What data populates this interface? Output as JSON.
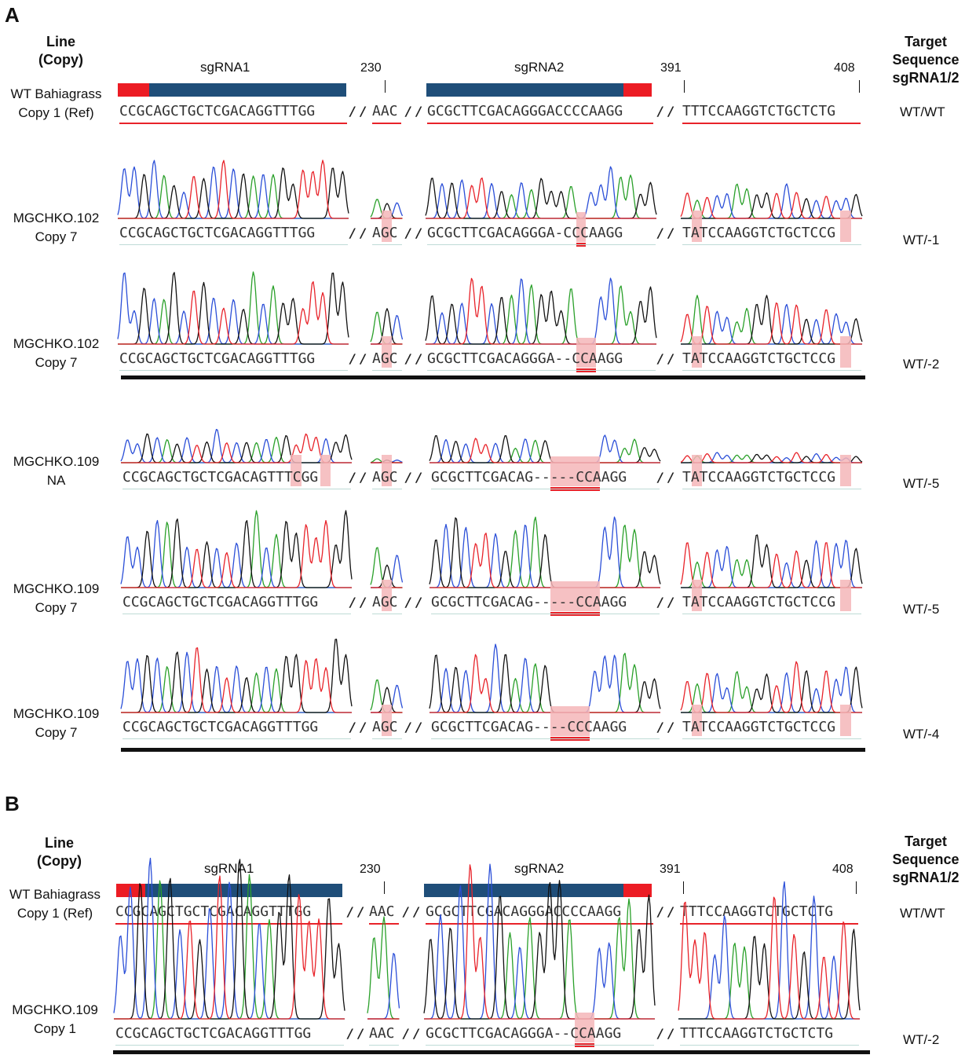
{
  "panels": [
    {
      "letter": "A",
      "left_header": "Line\n(Copy)",
      "right_header": "Target\nSequence\nsgRNA1/2",
      "sgrna1_label": "sgRNA1",
      "sgrna2_label": "sgRNA2",
      "positions": [
        "230",
        "391",
        "408"
      ],
      "reference": {
        "line": "WT Bahiagrass",
        "copy": "Copy 1 (Ref)",
        "seq1": "CCGCAGCTGCTCGACAGGTTTGG",
        "seq2": "AAC",
        "seq3": "GCGCTTCGACAGGGACCCCAAGG",
        "seq4": "TTTCCAAGGTCTGCTCTG",
        "result": "WT/WT"
      },
      "samples": [
        {
          "line": "MGCHKO.102",
          "copy": "Copy 7",
          "seq1": "CCGCAGCTGCTCGACAGGTTTGG",
          "seq2": "AGC",
          "seq3": "GCGCTTCGACAGGGA-CCCAAGG",
          "seq4": "TATCCAAGGTCTGCTCCG",
          "result": "WT/-1"
        },
        {
          "line": "MGCHKO.102",
          "copy": "Copy 7",
          "seq1": "CCGCAGCTGCTCGACAGGTTTGG",
          "seq2": "AGC",
          "seq3": "GCGCTTCGACAGGGA--CCAAGG",
          "seq4": "TATCCAAGGTCTGCTCCG",
          "result": "WT/-2"
        },
        {
          "line": "MGCHKO.109",
          "copy": "NA",
          "seq1": "CCGCAGCTGCTCGACAGTTTCGG",
          "seq2": "AGC",
          "seq3": "GCGCTTCGACAG-----CCAAGG",
          "seq4": "TATCCAAGGTCTGCTCCG",
          "result": "WT/-5"
        },
        {
          "line": "MGCHKO.109",
          "copy": "Copy 7",
          "seq1": "CCGCAGCTGCTCGACAGGTTTGG",
          "seq2": "AGC",
          "seq3": "GCGCTTCGACAG-----CCAAGG",
          "seq4": "TATCCAAGGTCTGCTCCG",
          "result": "WT/-5"
        },
        {
          "line": "MGCHKO.109",
          "copy": "Copy 7",
          "seq1": "CCGCAGCTGCTCGACAGGTTTGG",
          "seq2": "AGC",
          "seq3": "GCGCTTCGACAG----CCCAAGG",
          "seq4": "TATCCAAGGTCTGCTCCG",
          "result": "WT/-4"
        }
      ]
    },
    {
      "letter": "B",
      "left_header": "Line\n(Copy)",
      "right_header": "Target\nSequence\nsgRNA1/2",
      "sgrna1_label": "sgRNA1",
      "sgrna2_label": "sgRNA2",
      "positions": [
        "230",
        "391",
        "408"
      ],
      "reference": {
        "line": "WT Bahiagrass",
        "copy": "Copy 1 (Ref)",
        "seq1": "CCGCAGCTGCTCGACAGGTTTGG",
        "seq2": "AAC",
        "seq3": "GCGCTTCGACAGGGACCCCAAGG",
        "seq4": "TTTCCAAGGTCTGCTCTG",
        "result": "WT/WT"
      },
      "samples": [
        {
          "line": "MGCHKO.109",
          "copy": "Copy 1",
          "seq1": "CCGCAGCTGCTCGACAGGTTTGG",
          "seq2": "AAC",
          "seq3": "GCGCTTCGACAGGGA--CCAAGG",
          "seq4": "TTTCCAAGGTCTGCTCTG",
          "result": "WT/-2"
        }
      ]
    }
  ],
  "separator": "/ /",
  "colors": {
    "A": "#2aa02a",
    "C": "#2b4fd8",
    "G": "#111111",
    "T": "#e8232a",
    "highlight": "#f4b6b9",
    "sgrna_bar": "#1f4e79",
    "pam": "#ec1c24"
  }
}
